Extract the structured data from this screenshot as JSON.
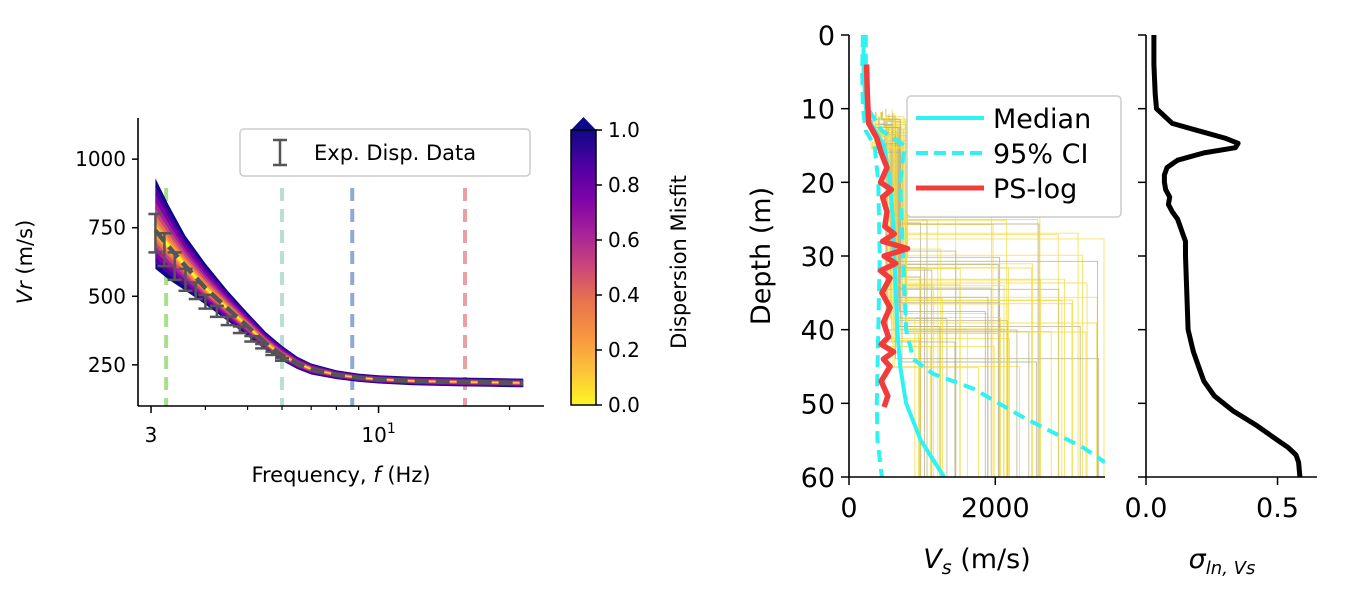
{
  "chart_data": [
    {
      "id": "dispersion",
      "type": "line",
      "title": "",
      "xlabel": "Frequency, ",
      "xlabel_italic": "f",
      "xlabel_unit": " (Hz)",
      "ylabel_italic": "Vr",
      "ylabel_unit": " (m/s)",
      "x_scale": "log",
      "xlim": [
        2.8,
        24
      ],
      "ylim": [
        100,
        1150
      ],
      "x_ticks": [
        {
          "value": 3,
          "label": "3"
        },
        {
          "value": 10,
          "label": "10",
          "sup": "1"
        }
      ],
      "y_ticks": [
        {
          "value": 250,
          "label": "250"
        },
        {
          "value": 500,
          "label": "500"
        },
        {
          "value": 750,
          "label": "750"
        },
        {
          "value": 1000,
          "label": "1000"
        }
      ],
      "legend": {
        "placement": "top-right",
        "entries": [
          {
            "label": "Exp. Disp. Data",
            "color": "#555555"
          }
        ]
      },
      "ensemble_band": {
        "x": [
          3.07,
          3.3,
          3.6,
          4.0,
          4.5,
          5.0,
          5.5,
          6.0,
          6.5,
          7.0,
          8.0,
          9.0,
          10.0,
          12.0,
          15.0,
          18.0,
          21.5
        ],
        "upper": [
          930,
          830,
          720,
          620,
          520,
          440,
          370,
          320,
          280,
          255,
          230,
          218,
          212,
          207,
          204,
          202,
          200
        ],
        "lower": [
          600,
          560,
          520,
          470,
          410,
          355,
          305,
          265,
          235,
          215,
          198,
          188,
          182,
          176,
          172,
          170,
          168
        ]
      },
      "mean_curve": {
        "x": [
          3.07,
          3.3,
          3.6,
          4.0,
          4.5,
          5.0,
          5.5,
          6.0,
          6.5,
          7.0,
          8.0,
          9.0,
          10.0,
          12.0,
          15.0,
          18.0,
          21.5
        ],
        "y": [
          740,
          680,
          610,
          530,
          455,
          390,
          330,
          285,
          255,
          235,
          214,
          203,
          197,
          191,
          188,
          186,
          184
        ]
      },
      "experimental_data": {
        "x": [
          3.07,
          3.22,
          3.4,
          3.6,
          3.8,
          4.0,
          4.25,
          4.5,
          4.8,
          5.1,
          5.4,
          5.7,
          6.0
        ],
        "y": [
          730,
          670,
          610,
          560,
          520,
          480,
          445,
          410,
          378,
          345,
          318,
          292,
          270
        ],
        "err": [
          70,
          60,
          50,
          40,
          30,
          25,
          20,
          15,
          12,
          10,
          8,
          6,
          5
        ]
      },
      "vertical_lines": [
        {
          "x": 3.25,
          "color": "#a8df8c"
        },
        {
          "x": 6.0,
          "color": "#b9dfd1"
        },
        {
          "x": 8.7,
          "color": "#92a8d4"
        },
        {
          "x": 15.8,
          "color": "#e8a0a4"
        }
      ],
      "colorbar": {
        "label": "Dispersion Misfit",
        "range": [
          0.0,
          1.0
        ],
        "ticks": [
          {
            "value": 0.0,
            "label": "0.0"
          },
          {
            "value": 0.2,
            "label": "0.2"
          },
          {
            "value": 0.4,
            "label": "0.4"
          },
          {
            "value": 0.6,
            "label": "0.6"
          },
          {
            "value": 0.8,
            "label": "0.8"
          },
          {
            "value": 1.0,
            "label": "1.0"
          }
        ],
        "colormap": [
          "#fcf624",
          "#fcc23a",
          "#f89540",
          "#e8744d",
          "#cc4778",
          "#a62298",
          "#7e03a8",
          "#4c02a1",
          "#0d0887"
        ]
      }
    },
    {
      "id": "vs-profile",
      "type": "line",
      "title": "",
      "xlabel_italic": "V",
      "xlabel_sub": "s",
      "xlabel_unit": " (m/s)",
      "ylabel": "Depth (m)",
      "xlim": [
        0,
        3500
      ],
      "ylim": [
        60,
        0
      ],
      "x_ticks": [
        {
          "value": 0,
          "label": "0"
        },
        {
          "value": 2000,
          "label": "2000"
        }
      ],
      "y_ticks": [
        {
          "value": 0,
          "label": "0"
        },
        {
          "value": 10,
          "label": "10"
        },
        {
          "value": 20,
          "label": "20"
        },
        {
          "value": 30,
          "label": "30"
        },
        {
          "value": 40,
          "label": "40"
        },
        {
          "value": 50,
          "label": "50"
        },
        {
          "value": 60,
          "label": "60"
        }
      ],
      "legend": {
        "placement": "top-right",
        "entries": [
          {
            "label": "Median",
            "color": "#2ff2f2",
            "style": "solid"
          },
          {
            "label": "95% CI",
            "color": "#2ff2f2",
            "style": "dashed"
          },
          {
            "label": "PS-log",
            "color": "#f23c3c",
            "style": "solid"
          }
        ]
      },
      "median": {
        "depth": [
          0,
          5,
          10,
          12,
          15,
          20,
          25,
          30,
          35,
          40,
          45,
          50,
          55,
          60
        ],
        "vs": [
          200,
          200,
          230,
          300,
          480,
          560,
          600,
          620,
          640,
          660,
          700,
          780,
          980,
          1300
        ]
      },
      "ci_lower": {
        "depth": [
          0,
          5,
          10,
          13,
          15,
          20,
          30,
          40,
          50,
          55,
          60
        ],
        "vs": [
          190,
          180,
          190,
          230,
          350,
          400,
          420,
          400,
          380,
          390,
          450
        ]
      },
      "ci_upper": {
        "depth": [
          0,
          5,
          10,
          13,
          15,
          20,
          30,
          40,
          44,
          46,
          48,
          52,
          56,
          58
        ],
        "vs": [
          230,
          230,
          260,
          450,
          760,
          700,
          740,
          780,
          880,
          1150,
          1700,
          2400,
          3200,
          3500
        ]
      },
      "ps_log": {
        "depth": [
          4,
          8,
          12,
          14,
          16,
          18,
          20,
          21,
          22,
          24,
          26,
          27,
          28,
          29,
          30,
          31,
          32,
          33,
          35,
          37,
          39,
          41,
          42,
          43,
          44,
          45,
          47,
          49,
          50.5
        ],
        "vs": [
          240,
          250,
          270,
          380,
          440,
          520,
          430,
          580,
          460,
          520,
          490,
          620,
          460,
          800,
          480,
          640,
          430,
          560,
          450,
          560,
          470,
          540,
          440,
          610,
          470,
          560,
          440,
          530,
          480
        ]
      }
    },
    {
      "id": "sigma-profile",
      "type": "line",
      "title": "",
      "xlabel_italic": "σ",
      "xlabel_sub": "ln, Vs",
      "xlim": [
        0,
        0.65
      ],
      "ylim": [
        60,
        0
      ],
      "x_ticks": [
        {
          "value": 0.0,
          "label": "0.0"
        },
        {
          "value": 0.5,
          "label": "0.5"
        }
      ],
      "y_ticks": [
        {
          "value": 0,
          "label": ""
        },
        {
          "value": 10,
          "label": ""
        },
        {
          "value": 20,
          "label": ""
        },
        {
          "value": 30,
          "label": ""
        },
        {
          "value": 40,
          "label": ""
        },
        {
          "value": 50,
          "label": ""
        },
        {
          "value": 60,
          "label": ""
        }
      ],
      "sigma": {
        "depth": [
          0,
          4,
          8,
          10,
          12,
          13,
          14,
          14.7,
          15.3,
          16,
          17,
          18,
          19,
          20,
          21,
          22,
          23,
          24,
          25,
          26,
          27,
          28,
          30,
          35,
          40,
          43,
          45,
          47,
          49,
          51,
          53,
          55,
          56,
          57,
          58,
          60
        ],
        "value": [
          0.03,
          0.03,
          0.035,
          0.04,
          0.1,
          0.2,
          0.3,
          0.35,
          0.34,
          0.22,
          0.12,
          0.08,
          0.07,
          0.07,
          0.075,
          0.09,
          0.085,
          0.1,
          0.12,
          0.13,
          0.14,
          0.15,
          0.15,
          0.155,
          0.16,
          0.18,
          0.2,
          0.22,
          0.26,
          0.33,
          0.42,
          0.5,
          0.54,
          0.57,
          0.58,
          0.585
        ]
      }
    }
  ]
}
